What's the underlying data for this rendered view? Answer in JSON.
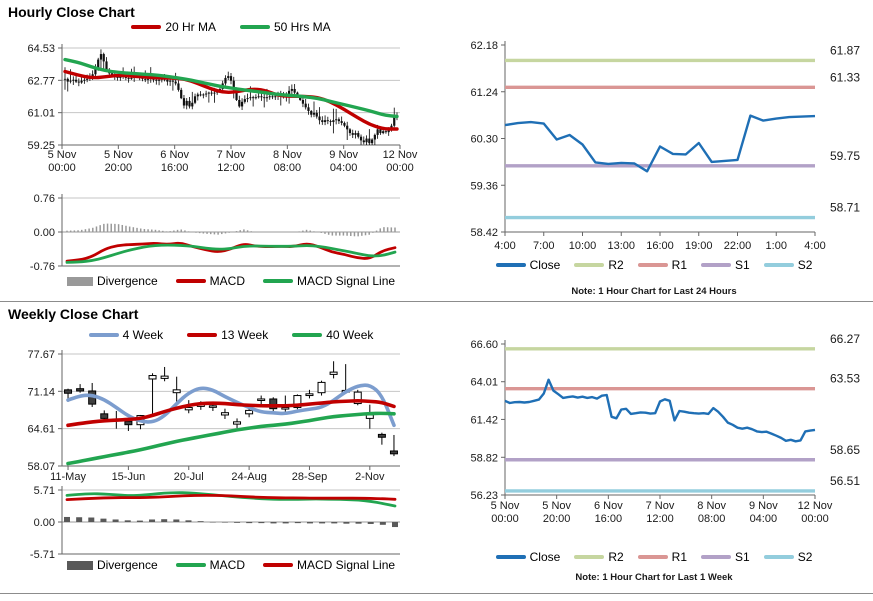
{
  "colors": {
    "ma_red": "#C00000",
    "ma_green": "#22A550",
    "close_blue": "#1F6FB5",
    "week4_blue": "#7C9DCE",
    "r2": "#C6D6A0",
    "r1": "#DA9694",
    "s1": "#B2A1C7",
    "s2": "#93CDDD",
    "divergence_hourly": "#999999",
    "divergence_weekly": "#595959",
    "candle_dark": "#3F3F3F",
    "grid": "#C6C6C6",
    "axis": "#666666"
  },
  "sections": {
    "hourly": {
      "title": "Hourly Close Chart"
    },
    "weekly": {
      "title": "Weekly Close Chart"
    }
  },
  "chart_data": [
    {
      "name": "hourly_price",
      "type": "candlestick_with_ma",
      "ylim": [
        59.25,
        64.53
      ],
      "yticks": [
        "64.53",
        "62.77",
        "61.01",
        "59.25"
      ],
      "xticks": [
        [
          "5 Nov",
          "00:00"
        ],
        [
          "5 Nov",
          "20:00"
        ],
        [
          "6 Nov",
          "16:00"
        ],
        [
          "7 Nov",
          "12:00"
        ],
        [
          "8 Nov",
          "08:00"
        ],
        [
          "9 Nov",
          "04:00"
        ],
        [
          "12 Nov",
          "00:00"
        ]
      ],
      "close": [
        62.85,
        62.7,
        62.75,
        62.8,
        62.7,
        62.65,
        62.75,
        62.8,
        62.85,
        62.9,
        63.1,
        63.45,
        63.9,
        64.2,
        63.8,
        63.35,
        63.15,
        63.05,
        62.95,
        62.9,
        62.95,
        63.0,
        62.9,
        62.85,
        62.9,
        62.95,
        63.0,
        62.9,
        62.85,
        62.8,
        62.9,
        62.85,
        62.8,
        62.75,
        62.8,
        62.85,
        62.8,
        62.7,
        62.75,
        62.7,
        62.6,
        62.25,
        61.8,
        61.4,
        61.65,
        61.35,
        61.55,
        61.9,
        62.0,
        61.95,
        62.0,
        62.05,
        62.1,
        62.05,
        62.1,
        62.15,
        62.3,
        62.6,
        62.9,
        63.0,
        62.75,
        62.3,
        61.7,
        61.35,
        61.6,
        61.75,
        61.8,
        61.85,
        61.8,
        61.85,
        61.9,
        61.85,
        61.8,
        61.85,
        61.9,
        61.85,
        61.9,
        61.95,
        61.9,
        61.85,
        62.0,
        62.2,
        62.3,
        62.1,
        61.9,
        61.7,
        61.5,
        61.3,
        61.1,
        60.9,
        61.0,
        60.8,
        60.6,
        60.5,
        60.6,
        60.55,
        60.5,
        60.6,
        60.65,
        60.55,
        60.45,
        60.3,
        60.1,
        59.9,
        59.8,
        59.9,
        59.7,
        59.5,
        59.4,
        59.6,
        59.35,
        59.55,
        59.8,
        60.1,
        59.9,
        60.0,
        59.95,
        60.05,
        60.3,
        60.75,
        60.8
      ],
      "series": [
        {
          "name": "20 Hr MA",
          "color": "ma_red",
          "values": [
            63.25,
            63.05,
            62.9,
            62.95,
            63.05,
            63.0,
            62.95,
            62.9,
            62.9,
            62.85,
            62.6,
            62.3,
            62.1,
            62.15,
            62.3,
            62.25,
            61.95,
            61.9,
            61.9,
            61.85,
            61.6,
            61.2,
            60.75,
            60.35,
            60.12,
            60.12
          ]
        },
        {
          "name": "50 Hrs MA",
          "color": "ma_green",
          "values": [
            63.9,
            63.75,
            63.5,
            63.3,
            63.2,
            63.15,
            63.1,
            63.05,
            62.95,
            62.85,
            62.7,
            62.55,
            62.4,
            62.3,
            62.2,
            62.1,
            62.0,
            61.95,
            61.88,
            61.8,
            61.62,
            61.45,
            61.28,
            61.1,
            60.88,
            60.8
          ]
        }
      ],
      "legend": [
        {
          "label": "20 Hr MA",
          "color": "ma_red",
          "type": "line"
        },
        {
          "label": "50 Hrs MA",
          "color": "ma_green",
          "type": "line"
        }
      ]
    },
    {
      "name": "hourly_macd",
      "type": "macd",
      "ylim": [
        -0.76,
        0.76
      ],
      "yticks": [
        "0.76",
        "0.00",
        "-0.76"
      ],
      "macd": [
        -0.65,
        -0.63,
        -0.55,
        -0.38,
        -0.3,
        -0.28,
        -0.27,
        -0.25,
        -0.28,
        -0.24,
        -0.33,
        -0.4,
        -0.45,
        -0.38,
        -0.26,
        -0.32,
        -0.33,
        -0.32,
        -0.33,
        -0.25,
        -0.33,
        -0.45,
        -0.5,
        -0.58,
        -0.6,
        -0.42,
        -0.35
      ],
      "signal": [
        -0.68,
        -0.67,
        -0.64,
        -0.57,
        -0.48,
        -0.4,
        -0.34,
        -0.3,
        -0.29,
        -0.3,
        -0.32,
        -0.36,
        -0.39,
        -0.37,
        -0.32,
        -0.31,
        -0.32,
        -0.32,
        -0.32,
        -0.3,
        -0.32,
        -0.37,
        -0.42,
        -0.48,
        -0.54,
        -0.53,
        -0.45
      ],
      "macd_color": "ma_red",
      "signal_color": "ma_green",
      "bar_color": "divergence_hourly",
      "legend": [
        {
          "label": "Divergence",
          "color": "divergence_hourly",
          "type": "bar"
        },
        {
          "label": "MACD",
          "color": "ma_red",
          "type": "line"
        },
        {
          "label": "MACD Signal Line",
          "color": "ma_green",
          "type": "line"
        }
      ]
    },
    {
      "name": "hourly_close_pivots",
      "type": "line_with_levels",
      "ylim": [
        58.42,
        62.18
      ],
      "yticks": [
        "62.18",
        "61.24",
        "60.30",
        "59.36",
        "58.42"
      ],
      "xticks": [
        "4:00",
        "7:00",
        "10:00",
        "13:00",
        "16:00",
        "19:00",
        "22:00",
        "1:00",
        "4:00"
      ],
      "close": [
        60.57,
        60.61,
        60.63,
        60.6,
        60.28,
        60.37,
        60.18,
        59.82,
        59.79,
        59.81,
        59.8,
        59.64,
        60.14,
        59.99,
        59.98,
        60.21,
        59.83,
        59.85,
        59.87,
        60.76,
        60.66,
        60.7,
        60.73,
        60.74,
        60.75
      ],
      "levels": [
        {
          "name": "R2",
          "value": 61.87,
          "color": "r2"
        },
        {
          "name": "R1",
          "value": 61.33,
          "color": "r1"
        },
        {
          "name": "S1",
          "value": 59.75,
          "color": "s1"
        },
        {
          "name": "S2",
          "value": 58.71,
          "color": "s2"
        }
      ],
      "note": "Note: 1 Hour Chart for Last 24 Hours",
      "legend": [
        {
          "label": "Close",
          "color": "close_blue",
          "type": "line"
        },
        {
          "label": "R2",
          "color": "r2",
          "type": "line"
        },
        {
          "label": "R1",
          "color": "r1",
          "type": "line"
        },
        {
          "label": "S1",
          "color": "s1",
          "type": "line"
        },
        {
          "label": "S2",
          "color": "s2",
          "type": "line"
        }
      ]
    },
    {
      "name": "weekly_price",
      "type": "candlestick_ohlc_with_ma",
      "ylim": [
        58.07,
        77.67
      ],
      "yticks": [
        "77.67",
        "71.14",
        "64.61",
        "58.07"
      ],
      "xticks": [
        "11-May",
        "15-Jun",
        "20-Jul",
        "24-Aug",
        "28-Sep",
        "2-Nov"
      ],
      "xtick_slots": [
        0,
        5,
        10,
        15,
        20,
        25
      ],
      "candles": [
        {
          "o": 71.4,
          "h": 71.6,
          "l": 69.3,
          "c": 70.8,
          "f": "d"
        },
        {
          "o": 71.6,
          "h": 72.4,
          "l": 70.9,
          "c": 71.2,
          "f": "d"
        },
        {
          "o": 71.2,
          "h": 72.6,
          "l": 68.4,
          "c": 68.9,
          "f": "d"
        },
        {
          "o": 67.2,
          "h": 67.8,
          "l": 66.0,
          "c": 66.4,
          "f": "d"
        },
        {
          "o": 66.3,
          "h": 67.7,
          "l": 64.6,
          "c": 66.0,
          "f": "d"
        },
        {
          "o": 65.9,
          "h": 66.4,
          "l": 64.2,
          "c": 65.3,
          "f": "d"
        },
        {
          "o": 65.3,
          "h": 67.0,
          "l": 64.5,
          "c": 66.9,
          "f": "w"
        },
        {
          "o": 73.3,
          "h": 74.3,
          "l": 66.9,
          "c": 73.9,
          "f": "w"
        },
        {
          "o": 73.4,
          "h": 75.4,
          "l": 72.9,
          "c": 73.8,
          "f": "w"
        },
        {
          "o": 70.9,
          "h": 73.7,
          "l": 69.3,
          "c": 71.4,
          "f": "w"
        },
        {
          "o": 67.9,
          "h": 69.6,
          "l": 67.3,
          "c": 68.3,
          "f": "w"
        },
        {
          "o": 68.5,
          "h": 69.4,
          "l": 67.9,
          "c": 69.0,
          "f": "w"
        },
        {
          "o": 68.5,
          "h": 69.1,
          "l": 67.7,
          "c": 68.6,
          "f": "w"
        },
        {
          "o": 67.0,
          "h": 68.1,
          "l": 66.3,
          "c": 67.4,
          "f": "w"
        },
        {
          "o": 65.4,
          "h": 66.4,
          "l": 64.7,
          "c": 65.8,
          "f": "w"
        },
        {
          "o": 67.2,
          "h": 68.4,
          "l": 66.6,
          "c": 67.8,
          "f": "w"
        },
        {
          "o": 69.7,
          "h": 70.4,
          "l": 68.4,
          "c": 69.8,
          "f": "w"
        },
        {
          "o": 69.8,
          "h": 70.1,
          "l": 67.7,
          "c": 68.1,
          "f": "d"
        },
        {
          "o": 68.1,
          "h": 70.4,
          "l": 67.6,
          "c": 68.3,
          "f": "w"
        },
        {
          "o": 68.3,
          "h": 70.6,
          "l": 68.0,
          "c": 70.4,
          "f": "w"
        },
        {
          "o": 70.4,
          "h": 71.4,
          "l": 69.9,
          "c": 70.7,
          "f": "w"
        },
        {
          "o": 70.9,
          "h": 73.0,
          "l": 70.4,
          "c": 72.7,
          "f": "w"
        },
        {
          "o": 74.1,
          "h": 76.4,
          "l": 73.4,
          "c": 74.5,
          "f": "w"
        },
        {
          "o": 71.0,
          "h": 75.9,
          "l": 70.7,
          "c": 71.3,
          "f": "w"
        },
        {
          "o": 71.0,
          "h": 71.4,
          "l": 68.7,
          "c": 69.0,
          "f": "w"
        },
        {
          "o": 67.0,
          "h": 68.8,
          "l": 64.6,
          "c": 66.4,
          "f": "w"
        },
        {
          "o": 63.6,
          "h": 63.9,
          "l": 61.8,
          "c": 63.1,
          "f": "d"
        },
        {
          "o": 60.7,
          "h": 63.5,
          "l": 59.8,
          "c": 60.2,
          "f": "d"
        }
      ],
      "series": [
        {
          "name": "4 Week",
          "color": "week4_blue",
          "values": [
            69.6,
            70.4,
            70.5,
            69.7,
            68.3,
            66.8,
            65.9,
            65.7,
            66.8,
            69.0,
            70.9,
            71.8,
            71.4,
            70.2,
            69.2,
            68.3,
            67.5,
            67.4,
            67.2,
            67.7,
            68.0,
            68.3,
            69.5,
            71.1,
            72.1,
            72.3,
            70.5,
            65.2
          ]
        },
        {
          "name": "13 Week",
          "color": "ma_red",
          "values": [
            65.2,
            65.5,
            65.8,
            66.0,
            66.1,
            66.2,
            66.4,
            66.9,
            67.6,
            68.2,
            68.7,
            69.0,
            69.1,
            69.0,
            68.8,
            68.7,
            68.6,
            68.6,
            68.6,
            68.7,
            68.9,
            69.1,
            69.3,
            69.4,
            69.5,
            69.4,
            69.2,
            68.5
          ]
        },
        {
          "name": "40 Week",
          "color": "ma_green",
          "values": [
            58.5,
            58.9,
            59.3,
            59.7,
            60.1,
            60.5,
            60.9,
            61.4,
            61.9,
            62.4,
            62.8,
            63.2,
            63.6,
            64.0,
            64.4,
            64.7,
            65.0,
            65.2,
            65.4,
            65.7,
            66.0,
            66.4,
            66.7,
            66.9,
            67.1,
            67.25,
            67.3,
            67.2
          ]
        }
      ],
      "legend": [
        {
          "label": "4 Week",
          "color": "week4_blue",
          "type": "line"
        },
        {
          "label": "13 Week",
          "color": "ma_red",
          "type": "line"
        },
        {
          "label": "40 Week",
          "color": "ma_green",
          "type": "line"
        }
      ]
    },
    {
      "name": "weekly_macd",
      "type": "macd",
      "ylim": [
        -5.71,
        5.71
      ],
      "yticks": [
        "5.71",
        "0.00",
        "-5.71"
      ],
      "macd": [
        4.75,
        4.95,
        5.05,
        5.0,
        4.85,
        4.7,
        4.75,
        4.95,
        5.15,
        5.25,
        5.2,
        5.05,
        4.85,
        4.65,
        4.45,
        4.3,
        4.15,
        4.05,
        4.05,
        4.05,
        4.1,
        4.1,
        4.05,
        4.0,
        3.9,
        3.7,
        3.3,
        2.85
      ],
      "signal": [
        4.0,
        4.1,
        4.2,
        4.3,
        4.35,
        4.35,
        4.35,
        4.4,
        4.5,
        4.6,
        4.7,
        4.75,
        4.75,
        4.7,
        4.6,
        4.5,
        4.4,
        4.35,
        4.3,
        4.3,
        4.25,
        4.25,
        4.25,
        4.25,
        4.25,
        4.2,
        4.15,
        4.05
      ],
      "divergence": [
        0.9,
        0.85,
        0.8,
        0.6,
        0.45,
        0.3,
        0.25,
        0.45,
        0.5,
        0.45,
        0.3,
        0.15,
        -0.05,
        -0.1,
        -0.15,
        -0.2,
        -0.2,
        -0.25,
        -0.25,
        -0.2,
        -0.25,
        -0.25,
        -0.25,
        -0.3,
        -0.3,
        -0.35,
        -0.5,
        -0.9
      ],
      "macd_color": "ma_green",
      "signal_color": "ma_red",
      "bar_color": "divergence_weekly",
      "legend": [
        {
          "label": "Divergence",
          "color": "divergence_weekly",
          "type": "bar"
        },
        {
          "label": "MACD",
          "color": "ma_green",
          "type": "line"
        },
        {
          "label": "MACD Signal Line",
          "color": "ma_red",
          "type": "line"
        }
      ]
    },
    {
      "name": "weekly_close_pivots",
      "type": "line_with_levels",
      "ylim": [
        56.23,
        66.6
      ],
      "yticks": [
        "66.60",
        "64.01",
        "61.42",
        "58.82",
        "56.23"
      ],
      "xticks": [
        [
          "5 Nov",
          "00:00"
        ],
        [
          "5 Nov",
          "20:00"
        ],
        [
          "6 Nov",
          "16:00"
        ],
        [
          "7 Nov",
          "12:00"
        ],
        [
          "8 Nov",
          "08:00"
        ],
        [
          "9 Nov",
          "04:00"
        ],
        [
          "12 Nov",
          "00:00"
        ]
      ],
      "close": [
        62.7,
        62.55,
        62.6,
        62.62,
        62.58,
        62.62,
        62.7,
        62.78,
        63.2,
        64.15,
        63.4,
        63.15,
        62.9,
        62.95,
        63.0,
        62.92,
        62.98,
        62.9,
        62.95,
        62.85,
        63.05,
        63.1,
        61.6,
        61.5,
        62.1,
        62.15,
        61.8,
        61.85,
        61.9,
        61.88,
        61.82,
        61.85,
        62.65,
        62.8,
        62.7,
        61.35,
        62.0,
        61.95,
        61.88,
        61.85,
        61.82,
        61.85,
        61.8,
        62.2,
        61.95,
        61.6,
        61.2,
        61.05,
        60.85,
        60.78,
        60.85,
        60.75,
        60.6,
        60.55,
        60.58,
        60.45,
        60.3,
        60.15,
        59.95,
        60.02,
        59.92,
        59.98,
        60.6,
        60.65,
        60.7
      ],
      "levels": [
        {
          "name": "R2",
          "value": 66.27,
          "color": "r2"
        },
        {
          "name": "R1",
          "value": 63.53,
          "color": "r1"
        },
        {
          "name": "S1",
          "value": 58.65,
          "color": "s1"
        },
        {
          "name": "S2",
          "value": 56.51,
          "color": "s2"
        }
      ],
      "note": "Note: 1 Hour Chart for Last 1 Week",
      "legend": [
        {
          "label": "Close",
          "color": "close_blue",
          "type": "line"
        },
        {
          "label": "R2",
          "color": "r2",
          "type": "line"
        },
        {
          "label": "R1",
          "color": "r1",
          "type": "line"
        },
        {
          "label": "S1",
          "color": "s1",
          "type": "line"
        },
        {
          "label": "S2",
          "color": "s2",
          "type": "line"
        }
      ]
    }
  ]
}
